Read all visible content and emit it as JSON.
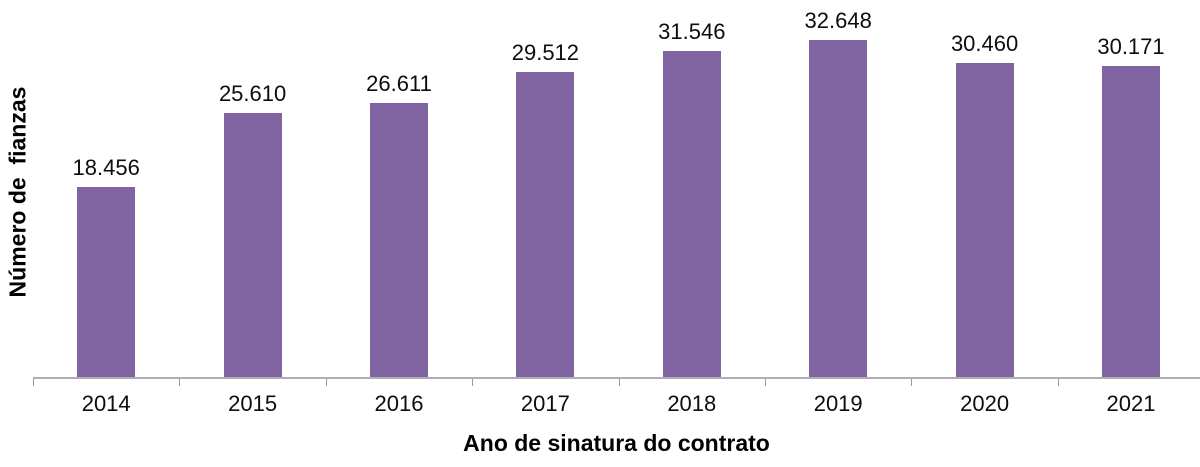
{
  "chart_data": {
    "type": "bar",
    "title": "",
    "xlabel": "Ano de sinatura do contrato",
    "ylabel": "Número de  fianzas",
    "categories": [
      "2014",
      "2015",
      "2016",
      "2017",
      "2018",
      "2019",
      "2020",
      "2021"
    ],
    "values": [
      18456,
      25610,
      26611,
      29512,
      31546,
      32648,
      30460,
      30171
    ],
    "value_labels": [
      "18.456",
      "25.610",
      "26.611",
      "29.512",
      "31.546",
      "32.648",
      "30.460",
      "30.171"
    ],
    "series_name": "Número de fianzas",
    "ylim": [
      0,
      35000
    ],
    "grid": false,
    "legend": false,
    "bar_color": "#8064A2",
    "axis_color": "#B0AEB2",
    "text_color": "#0D0D0D"
  }
}
